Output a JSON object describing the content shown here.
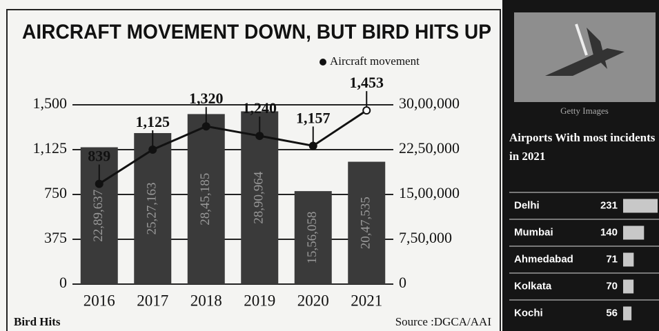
{
  "chart_data": [
    {
      "type": "combo",
      "title": "AIRCRAFT MOVEMENT DOWN, BUT BIRD HITS UP",
      "ylabel": "Bird Hits",
      "source": "Source :DGCA/AAI",
      "categories": [
        "2016",
        "2017",
        "2018",
        "2019",
        "2020",
        "2021"
      ],
      "series": [
        {
          "type": "bar",
          "axis": "y2",
          "color": "#3a3a3a",
          "values": [
            2289637,
            2527163,
            2845185,
            2890964,
            1556058,
            2047535
          ],
          "value_labels": [
            "22,89,637",
            "25,27,163",
            "28,45,185",
            "28,90,964",
            "15,56,058",
            "20,47,535"
          ]
        },
        {
          "type": "line",
          "name": "Aircraft movement",
          "color": "#111111",
          "values": [
            839,
            1125,
            1320,
            1240,
            1157,
            1453
          ],
          "value_labels": [
            "839",
            "1,125",
            "1,320",
            "1,240",
            "1,157",
            "1,453"
          ]
        }
      ],
      "ylim": [
        0,
        1500
      ],
      "yticks": [
        0,
        375,
        750,
        {
          "value": 1125,
          "label": "1,125"
        },
        {
          "value": 1500,
          "label": "1,500"
        }
      ],
      "y2lim": [
        0,
        3000000
      ],
      "y2ticks": [
        0,
        {
          "value": 750000,
          "label": "7,50,000"
        },
        {
          "value": 1500000,
          "label": "15,00,000"
        },
        {
          "value": 2250000,
          "label": "22,50,000"
        },
        {
          "value": 3000000,
          "label": "30,00,000"
        }
      ],
      "grid": true
    },
    {
      "type": "bar",
      "orientation": "horizontal",
      "credit": "Getty Images",
      "title": "Airports With most incidents in 2021",
      "categories": [
        "Delhi",
        "Mumbai",
        "Ahmedabad",
        "Kolkata",
        "Kochi"
      ],
      "values": [
        231,
        140,
        71,
        70,
        56
      ],
      "color": "#c8c8c8"
    }
  ]
}
